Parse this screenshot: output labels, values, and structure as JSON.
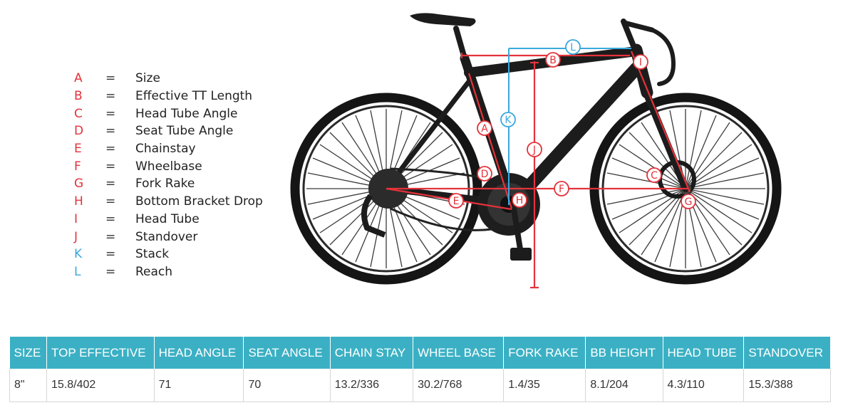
{
  "legend": [
    {
      "letter": "A",
      "desc": "Size",
      "color": "red"
    },
    {
      "letter": "B",
      "desc": "Effective TT Length",
      "color": "red"
    },
    {
      "letter": "C",
      "desc": "Head Tube Angle",
      "color": "red"
    },
    {
      "letter": "D",
      "desc": "Seat Tube Angle",
      "color": "red"
    },
    {
      "letter": "E",
      "desc": "Chainstay",
      "color": "red"
    },
    {
      "letter": "F",
      "desc": "Wheelbase",
      "color": "red"
    },
    {
      "letter": "G",
      "desc": "Fork Rake",
      "color": "red"
    },
    {
      "letter": "H",
      "desc": "Bottom Bracket Drop",
      "color": "red"
    },
    {
      "letter": "I",
      "desc": "Head Tube",
      "color": "red"
    },
    {
      "letter": "J",
      "desc": "Standover",
      "color": "red"
    },
    {
      "letter": "K",
      "desc": "Stack",
      "color": "blue"
    },
    {
      "letter": "L",
      "desc": "Reach",
      "color": "blue"
    }
  ],
  "legend_eq": "=",
  "colors": {
    "red": "#e4323a",
    "blue": "#3aa8de",
    "header": "#3bb0c4"
  },
  "table": {
    "headers": [
      "SIZE",
      "TOP EFFECTIVE",
      "HEAD ANGLE",
      "SEAT ANGLE",
      "CHAIN STAY",
      "WHEEL BASE",
      "FORK RAKE",
      "BB HEIGHT",
      "HEAD TUBE",
      "STANDOVER"
    ],
    "rows": [
      [
        "8\"",
        "15.8/402",
        "71",
        "70",
        "13.2/336",
        "30.2/768",
        "1.4/35",
        "8.1/204",
        "4.3/110",
        "15.3/388"
      ]
    ]
  }
}
